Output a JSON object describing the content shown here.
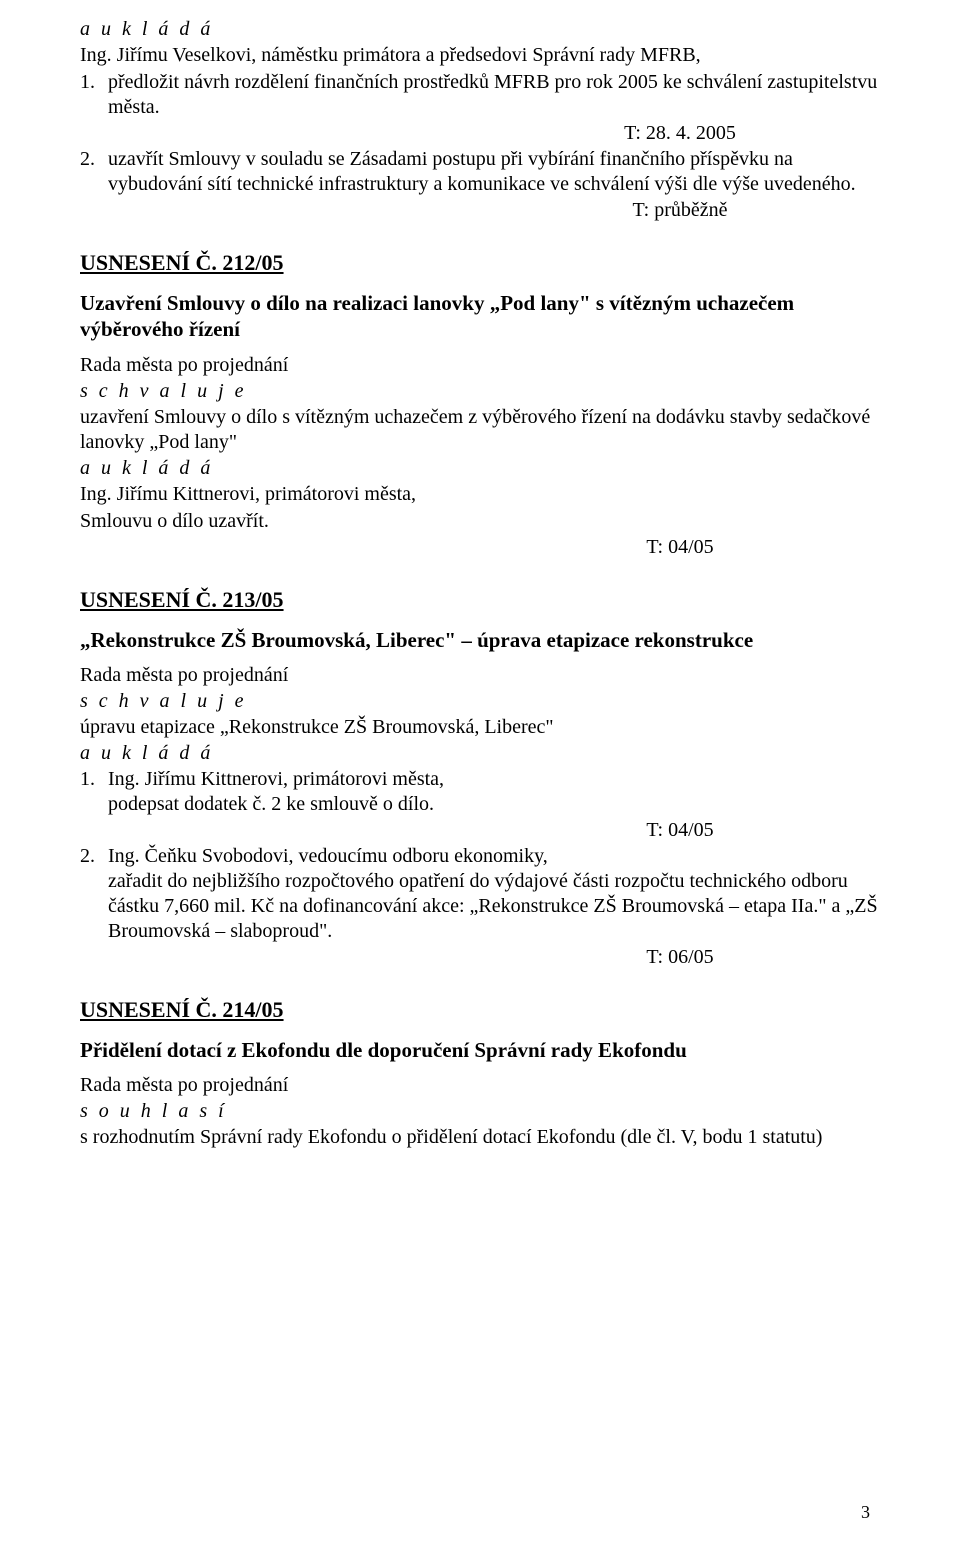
{
  "colors": {
    "text": "#000000",
    "background": "#ffffff"
  },
  "typography": {
    "font_family": "Times New Roman",
    "base_fontsize_pt": 15,
    "heading_fontsize_pt": 16
  },
  "labels": {
    "auklada": "a  u k l á d á",
    "schvaluje": "s c h v a l u j e",
    "souhlasi": "s o u h l a s í",
    "rada": "Rada města po projednání"
  },
  "sec_top": {
    "line1": "Ing. Jiřímu Veselkovi, náměstku primátora a předsedovi Správní rady MFRB,",
    "item1_num": "1.",
    "item1_text": "předložit návrh rozdělení finančních prostředků MFRB pro rok 2005 ke schválení zastupitelstvu města.",
    "t1": "T: 28. 4. 2005",
    "item2_num": "2.",
    "item2_text": "uzavřít Smlouvy v souladu se Zásadami postupu při vybírání finančního příspěvku na vybudování sítí technické infrastruktury a komunikace ve schválení výši dle výše uvedeného.",
    "t2": "T: průběžně"
  },
  "sec212": {
    "heading": "USNESENÍ Č. 212/05",
    "title": "Uzavření Smlouvy o dílo na realizaci lanovky „Pod lany\" s vítězným uchazečem výběrového řízení",
    "body1": "uzavření Smlouvy o dílo s vítězným uchazečem z výběrového řízení na dodávku stavby sedačkové lanovky „Pod lany\"",
    "body2a": "Ing. Jiřímu Kittnerovi, primátorovi města,",
    "body2b": "Smlouvu o dílo uzavřít.",
    "t": "T: 04/05"
  },
  "sec213": {
    "heading": "USNESENÍ Č. 213/05",
    "title": "„Rekonstrukce ZŠ Broumovská, Liberec\" – úprava etapizace rekonstrukce",
    "body1": "úpravu etapizace „Rekonstrukce ZŠ Broumovská, Liberec\"",
    "item1_num": "1.",
    "item1_line1": "Ing. Jiřímu Kittnerovi, primátorovi města,",
    "item1_line2": "podepsat dodatek č. 2 ke smlouvě o dílo.",
    "t1": "T: 04/05",
    "item2_num": "2.",
    "item2_line1": "Ing. Čeňku Svobodovi, vedoucímu odboru ekonomiky,",
    "item2_line2": "zařadit do nejbližšího rozpočtového opatření do výdajové části rozpočtu technického odboru částku 7,660 mil. Kč na dofinancování akce: „Rekonstrukce ZŠ Broumovská – etapa IIa.\" a „ZŠ Broumovská – slaboproud\".",
    "t2": "T: 06/05"
  },
  "sec214": {
    "heading": "USNESENÍ Č. 214/05",
    "title": "Přidělení dotací z Ekofondu dle doporučení Správní rady Ekofondu",
    "body1": "s rozhodnutím Správní rady Ekofondu o přidělení dotací Ekofondu (dle čl. V, bodu 1 statutu)"
  },
  "page_number": "3"
}
